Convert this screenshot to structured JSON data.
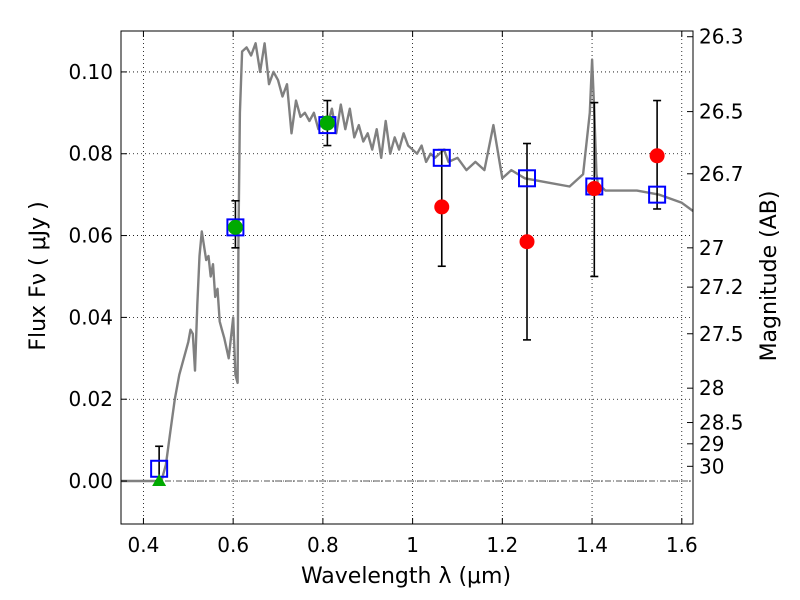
{
  "chart_data": {
    "type": "scatter",
    "xlabel": "Wavelength  λ (μm)",
    "ylabel_left": "Flux  Fν  ( μJy )",
    "ylabel_right": "Magnitude (AB)",
    "xlim": [
      0.35,
      1.625
    ],
    "ylim": [
      -0.0105,
      0.11
    ],
    "grid": true,
    "x_ticks": [
      0.4,
      0.6,
      0.8,
      1.0,
      1.2,
      1.4,
      1.6
    ],
    "x_tick_labels": [
      "0.4",
      "0.6",
      "0.8",
      "1",
      "1.2",
      "1.4",
      "1.6"
    ],
    "y_ticks": [
      0.0,
      0.02,
      0.04,
      0.06,
      0.08,
      0.1
    ],
    "y_tick_labels": [
      "0.00",
      "0.02",
      "0.04",
      "0.06",
      "0.08",
      "0.10"
    ],
    "right_axis_ticks": [
      {
        "label": "26.3",
        "flux": 0.1086
      },
      {
        "label": "26.5",
        "flux": 0.0903
      },
      {
        "label": "26.7",
        "flux": 0.0751
      },
      {
        "label": "27",
        "flux": 0.057
      },
      {
        "label": "27.2",
        "flux": 0.0474
      },
      {
        "label": "27.5",
        "flux": 0.036
      },
      {
        "label": "28",
        "flux": 0.0227
      },
      {
        "label": "28.5",
        "flux": 0.0143
      },
      {
        "label": "29",
        "flux": 0.0091
      },
      {
        "label": "30",
        "flux": 0.0036
      }
    ],
    "model_spectrum": {
      "color": "#808080",
      "x": [
        0.35,
        0.41,
        0.43,
        0.44,
        0.45,
        0.46,
        0.47,
        0.48,
        0.49,
        0.5,
        0.505,
        0.51,
        0.515,
        0.52,
        0.525,
        0.53,
        0.54,
        0.545,
        0.55,
        0.555,
        0.56,
        0.565,
        0.57,
        0.575,
        0.58,
        0.59,
        0.6,
        0.605,
        0.61,
        0.612,
        0.615,
        0.62,
        0.63,
        0.64,
        0.65,
        0.66,
        0.67,
        0.68,
        0.69,
        0.7,
        0.71,
        0.72,
        0.73,
        0.74,
        0.75,
        0.76,
        0.77,
        0.78,
        0.79,
        0.8,
        0.81,
        0.82,
        0.83,
        0.84,
        0.85,
        0.86,
        0.87,
        0.88,
        0.89,
        0.9,
        0.91,
        0.92,
        0.93,
        0.94,
        0.95,
        0.96,
        0.97,
        0.98,
        0.99,
        1.0,
        1.01,
        1.02,
        1.03,
        1.04,
        1.05,
        1.06,
        1.07,
        1.08,
        1.1,
        1.12,
        1.14,
        1.16,
        1.18,
        1.2,
        1.22,
        1.25,
        1.3,
        1.35,
        1.38,
        1.395,
        1.4,
        1.405,
        1.41,
        1.415,
        1.42,
        1.43,
        1.45,
        1.5,
        1.55,
        1.6,
        1.625
      ],
      "y": [
        0.0,
        0.0,
        0.0,
        0.0,
        0.004,
        0.012,
        0.02,
        0.026,
        0.03,
        0.034,
        0.037,
        0.036,
        0.027,
        0.043,
        0.055,
        0.061,
        0.054,
        0.055,
        0.05,
        0.053,
        0.045,
        0.047,
        0.039,
        0.037,
        0.035,
        0.03,
        0.04,
        0.026,
        0.024,
        0.06,
        0.09,
        0.105,
        0.106,
        0.104,
        0.107,
        0.1,
        0.107,
        0.097,
        0.1,
        0.098,
        0.094,
        0.097,
        0.085,
        0.093,
        0.089,
        0.09,
        0.088,
        0.09,
        0.086,
        0.088,
        0.087,
        0.091,
        0.085,
        0.092,
        0.086,
        0.091,
        0.084,
        0.087,
        0.083,
        0.085,
        0.081,
        0.086,
        0.079,
        0.088,
        0.08,
        0.084,
        0.081,
        0.085,
        0.082,
        0.081,
        0.08,
        0.082,
        0.078,
        0.08,
        0.079,
        0.08,
        0.081,
        0.078,
        0.079,
        0.076,
        0.078,
        0.076,
        0.087,
        0.074,
        0.076,
        0.074,
        0.073,
        0.072,
        0.075,
        0.09,
        0.103,
        0.09,
        0.075,
        0.071,
        0.072,
        0.071,
        0.071,
        0.071,
        0.07,
        0.068,
        0.066
      ]
    },
    "series": [
      {
        "marker": "open-square",
        "color": "#0000ff",
        "x": [
          0.435,
          0.605,
          0.81,
          1.065,
          1.255,
          1.405,
          1.545
        ],
        "y": [
          0.003,
          0.062,
          0.087,
          0.079,
          0.074,
          0.072,
          0.07
        ]
      },
      {
        "marker": "filled-circle",
        "color": "#00aa00",
        "x": [
          0.605,
          0.81
        ],
        "y": [
          0.062,
          0.0875
        ]
      },
      {
        "marker": "filled-circle",
        "color": "#ff0000",
        "x": [
          1.065,
          1.255,
          1.405,
          1.545
        ],
        "y": [
          0.067,
          0.0585,
          0.0715,
          0.0795
        ]
      },
      {
        "marker": "triangle",
        "color": "#00aa00",
        "x": [
          0.435
        ],
        "y": [
          0.0
        ]
      }
    ],
    "error_bars": [
      {
        "x": 0.435,
        "low": 0.0,
        "high": 0.0085
      },
      {
        "x": 0.605,
        "low": 0.057,
        "high": 0.0685
      },
      {
        "x": 0.81,
        "low": 0.082,
        "high": 0.093
      },
      {
        "x": 1.065,
        "low": 0.0525,
        "high": 0.081
      },
      {
        "x": 1.255,
        "low": 0.0345,
        "high": 0.0825
      },
      {
        "x": 1.405,
        "low": 0.05,
        "high": 0.0925
      },
      {
        "x": 1.545,
        "low": 0.0665,
        "high": 0.093
      }
    ],
    "zero_line": 0.0
  }
}
